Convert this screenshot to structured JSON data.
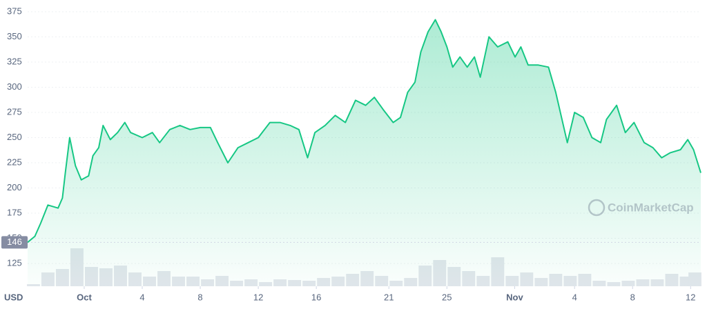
{
  "chart_data": {
    "type": "line",
    "currency": "USD",
    "watermark": "CoinMarketCap",
    "series": [
      {
        "color": "#16c784",
        "x": [
          -3.9,
          -3.4,
          -3.0,
          -2.5,
          -1.8,
          -1.5,
          -1.3,
          -1.0,
          -0.6,
          -0.2,
          0.3,
          0.6,
          1.0,
          1.3,
          1.8,
          2.3,
          2.8,
          3.2,
          4.0,
          4.7,
          5.2,
          5.9,
          6.6,
          7.3,
          8.0,
          8.7,
          9.2,
          9.9,
          10.6,
          11.3,
          12.0,
          12.8,
          13.5,
          14.2,
          14.8,
          15.4,
          15.9,
          16.6,
          17.3,
          18.0,
          18.7,
          19.4,
          20.0,
          20.6,
          21.3,
          21.8,
          22.3,
          22.8,
          23.2,
          23.7,
          24.2,
          24.6,
          25.0,
          25.4,
          25.9,
          26.4,
          26.9,
          27.3,
          27.9,
          28.5,
          29.2,
          29.7,
          30.1,
          30.6,
          31.3,
          32.0,
          32.5,
          32.9,
          33.3,
          33.8,
          34.4,
          35.0,
          35.6,
          36.0,
          36.7,
          37.3,
          37.9,
          38.6,
          39.2,
          39.8,
          40.4,
          41.1,
          41.6,
          42.0,
          42.5
        ],
        "values": [
          146,
          152,
          165,
          183,
          180,
          190,
          215,
          250,
          222,
          208,
          212,
          232,
          240,
          262,
          248,
          255,
          265,
          255,
          250,
          255,
          245,
          258,
          262,
          258,
          260,
          260,
          245,
          225,
          240,
          245,
          250,
          265,
          265,
          262,
          258,
          230,
          255,
          262,
          272,
          265,
          287,
          282,
          290,
          278,
          265,
          270,
          295,
          305,
          335,
          355,
          367,
          355,
          340,
          320,
          330,
          320,
          330,
          310,
          350,
          340,
          345,
          330,
          340,
          322,
          322,
          320,
          295,
          270,
          245,
          275,
          270,
          250,
          245,
          268,
          282,
          255,
          265,
          245,
          240,
          230,
          235,
          238,
          248,
          238,
          215
        ]
      }
    ],
    "volume": {
      "color": "#e3e6ec",
      "x": [
        -3.5,
        -2.5,
        -1.5,
        -0.5,
        0.5,
        1.5,
        2.5,
        3.5,
        4.5,
        5.5,
        6.5,
        7.5,
        8.5,
        9.5,
        10.5,
        11.5,
        12.5,
        13.5,
        14.5,
        15.5,
        16.5,
        17.5,
        18.5,
        19.5,
        20.5,
        21.5,
        22.5,
        23.5,
        24.5,
        25.5,
        26.5,
        27.5,
        28.5,
        29.5,
        30.5,
        31.5,
        32.5,
        33.5,
        34.5,
        35.5,
        36.5,
        37.5,
        38.5,
        39.5,
        40.5,
        41.5,
        42.1
      ],
      "values": [
        3,
        20,
        25,
        55,
        28,
        26,
        30,
        20,
        14,
        22,
        14,
        14,
        10,
        15,
        8,
        10,
        6,
        10,
        9,
        8,
        12,
        14,
        18,
        22,
        15,
        8,
        12,
        30,
        38,
        28,
        22,
        15,
        42,
        15,
        20,
        12,
        18,
        15,
        18,
        8,
        6,
        8,
        10,
        10,
        18,
        14,
        20
      ],
      "ylim": [
        0,
        100
      ]
    },
    "xlim": [
      -3.9,
      42.5
    ],
    "xticks": [
      {
        "value": 0,
        "label": "Oct"
      },
      4,
      8,
      12,
      16,
      21,
      25,
      {
        "value": 29.67,
        "label": "Nov"
      },
      {
        "value": 33.8,
        "label": "4"
      },
      {
        "value": 37.8,
        "label": "8"
      },
      {
        "value": 41.8,
        "label": "12"
      }
    ],
    "ylim": [
      102.4,
      386.6
    ],
    "yticks": [
      125,
      150,
      175,
      200,
      225,
      250,
      275,
      300,
      325,
      350,
      375
    ],
    "grid": true
  }
}
